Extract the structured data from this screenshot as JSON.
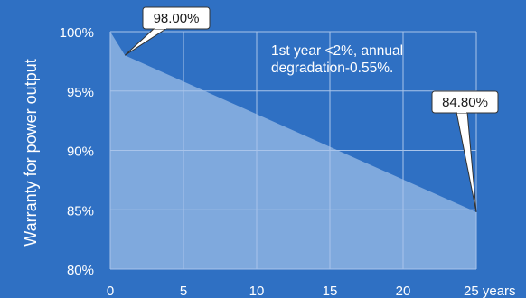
{
  "chart_data": {
    "type": "area",
    "ylabel": "Warranty for power output",
    "xlabel": "",
    "x": [
      0,
      1,
      25
    ],
    "values": [
      100,
      98.0,
      84.8
    ],
    "xlim": [
      0,
      25
    ],
    "ylim": [
      80,
      100
    ],
    "x_ticks": [
      0,
      5,
      10,
      15,
      20,
      25
    ],
    "x_tick_labels": [
      "0",
      "5",
      "10",
      "15",
      "20",
      "25 years"
    ],
    "y_ticks": [
      80,
      85,
      90,
      95,
      100
    ],
    "y_tick_labels": [
      "80%",
      "85%",
      "90%",
      "95%",
      "100%"
    ],
    "grid": true,
    "annotation_text": {
      "line1": "1st year <2%, annual",
      "line2": "degradation-0.55%."
    },
    "callouts": [
      {
        "label": "98.00%",
        "x": 1,
        "y": 98.0
      },
      {
        "label": "84.80%",
        "x": 25,
        "y": 84.8
      }
    ]
  },
  "colors": {
    "background": "#2f70c3",
    "area_fill": "#8bb0e0",
    "grid": "#a9c4ea",
    "text": "#ffffff",
    "callout_bg": "#ffffff",
    "callout_text": "#1b1b1b",
    "callout_border": "#333333"
  }
}
